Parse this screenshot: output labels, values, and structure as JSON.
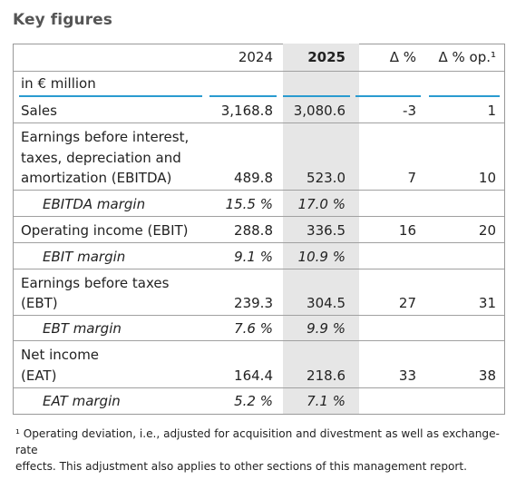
{
  "title": "Key figures",
  "columns": [
    "2024",
    "2025",
    "Δ %",
    "Δ % op.¹"
  ],
  "unit_label": "in € million",
  "rows": [
    {
      "label": [
        "Sales"
      ],
      "v2024": "3,168.8",
      "v2025": "3,080.6",
      "d": "-3",
      "dop": "1"
    },
    {
      "label": [
        "Earnings before interest,",
        "taxes, depreciation and",
        "amortization (EBITDA)"
      ],
      "v2024": "489.8",
      "v2025": "523.0",
      "d": "7",
      "dop": "10"
    },
    {
      "label": [
        "EBITDA margin"
      ],
      "v2024": "15.5 %",
      "v2025": "17.0 %",
      "d": "",
      "dop": ""
    },
    {
      "label": [
        "Operating income (EBIT)"
      ],
      "v2024": "288.8",
      "v2025": "336.5",
      "d": "16",
      "dop": "20"
    },
    {
      "label": [
        "EBIT margin"
      ],
      "v2024": "9.1 %",
      "v2025": "10.9 %",
      "d": "",
      "dop": ""
    },
    {
      "label": [
        "Earnings before taxes",
        "(EBT)"
      ],
      "v2024": "239.3",
      "v2025": "304.5",
      "d": "27",
      "dop": "31"
    },
    {
      "label": [
        "EBT margin"
      ],
      "v2024": "7.6 %",
      "v2025": "9.9 %",
      "d": "",
      "dop": ""
    },
    {
      "label": [
        "Net income",
        "(EAT)"
      ],
      "v2024": "164.4",
      "v2025": "218.6",
      "d": "33",
      "dop": "38"
    },
    {
      "label": [
        "EAT margin"
      ],
      "v2024": "5.2 %",
      "v2025": "7.1 %",
      "d": "",
      "dop": ""
    }
  ],
  "footnote": [
    "¹ Operating deviation, i.e., adjusted for acquisition and divestment as well as exchange-rate",
    "effects. This adjustment also applies to other sections of this management report."
  ]
}
